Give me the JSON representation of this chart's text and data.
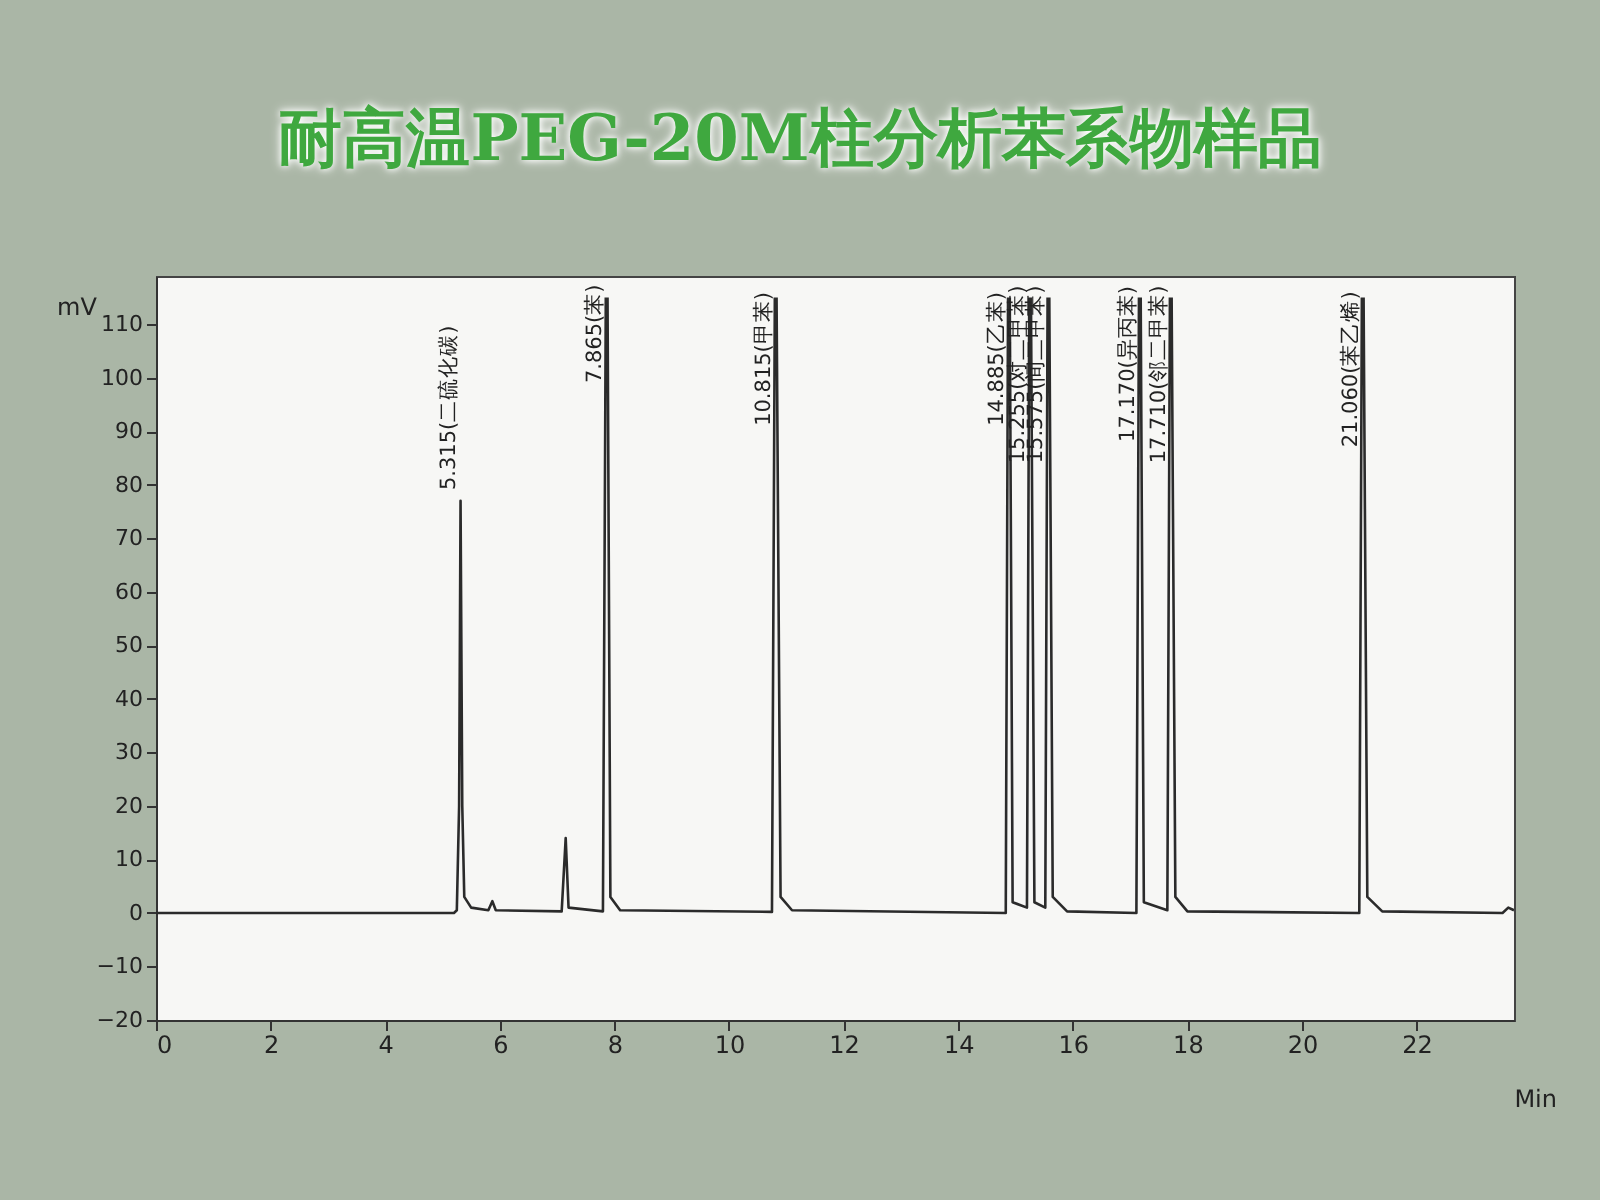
{
  "chart_data": {
    "type": "line",
    "title": "耐高温PEG-20M柱分析苯系物样品",
    "xlabel": "Min",
    "ylabel": "mV",
    "xlim": [
      0,
      23.7
    ],
    "xticks": [
      0,
      2,
      4,
      6,
      8,
      10,
      12,
      14,
      16,
      18,
      20,
      22
    ],
    "ylim": [
      -20,
      119
    ],
    "yticks": [
      -20,
      -10,
      0,
      10,
      20,
      30,
      40,
      50,
      60,
      70,
      80,
      90,
      100,
      110
    ],
    "series": [
      {
        "color": "#2b2b2b",
        "x": [
          0,
          5.2,
          5.25,
          5.29,
          5.315,
          5.345,
          5.38,
          5.5,
          5.8,
          5.87,
          5.93,
          7.08,
          7.15,
          7.2,
          7.8,
          7.85,
          7.865,
          7.88,
          7.93,
          8.1,
          10.75,
          10.8,
          10.815,
          10.83,
          10.9,
          11.1,
          14.83,
          14.87,
          14.885,
          14.9,
          14.95,
          15.2,
          15.24,
          15.255,
          15.27,
          15.33,
          15.52,
          15.56,
          15.575,
          15.59,
          15.65,
          15.9,
          17.11,
          17.155,
          17.17,
          17.185,
          17.24,
          17.65,
          17.695,
          17.71,
          17.725,
          17.79,
          18.0,
          21.0,
          21.045,
          21.06,
          21.075,
          21.14,
          21.4,
          23.5,
          23.6,
          23.7
        ],
        "values": [
          0,
          0,
          0.5,
          20,
          77,
          20,
          3,
          1,
          0.5,
          2.2,
          0.5,
          0.3,
          14,
          1,
          0.3,
          115,
          null,
          115,
          3,
          0.5,
          0.2,
          115,
          null,
          115,
          3,
          0.5,
          0,
          115,
          null,
          115,
          2,
          1,
          115,
          null,
          115,
          2,
          1,
          115,
          null,
          115,
          3,
          0.3,
          0,
          115,
          null,
          115,
          2,
          0.5,
          115,
          null,
          115,
          3,
          0.3,
          0,
          115,
          null,
          115,
          3,
          0.3,
          0,
          1,
          0.5
        ]
      }
    ],
    "annotations": [
      {
        "text": "5.315(二硫化碳)",
        "x": 5.315,
        "y": 79
      },
      {
        "text": "7.865(苯)",
        "x": 7.865,
        "y": 99
      },
      {
        "text": "10.815(甲苯)",
        "x": 10.815,
        "y": 91
      },
      {
        "text": "14.885(乙苯)",
        "x": 14.885,
        "y": 91
      },
      {
        "text": "15.255(对二甲苯)",
        "x": 15.255,
        "y": 84
      },
      {
        "text": "15.575(间二甲苯)",
        "x": 15.575,
        "y": 84
      },
      {
        "text": "17.170(异丙苯)",
        "x": 17.17,
        "y": 88
      },
      {
        "text": "17.710(邻二甲苯)",
        "x": 17.71,
        "y": 84
      },
      {
        "text": "21.060(苯乙烯)",
        "x": 21.06,
        "y": 87
      }
    ]
  }
}
